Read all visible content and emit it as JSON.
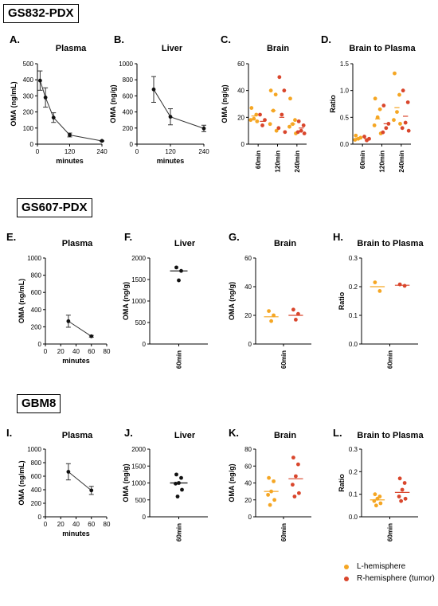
{
  "sections": [
    {
      "label": "GS832-PDX"
    },
    {
      "label": "GS607-PDX"
    },
    {
      "label": "GBM8"
    }
  ],
  "colors": {
    "L": "#F5A623",
    "R": "#D9462C",
    "black": "#111111"
  },
  "legend": {
    "items": [
      {
        "label": "L-hemisphere",
        "color": "#F5A623"
      },
      {
        "label": "R-hemisphere (tumor)",
        "color": "#D9462C"
      }
    ]
  },
  "chart_data": [
    {
      "id": "A",
      "panel_label": "A.",
      "title": "Plasma",
      "type": "line",
      "ylabel": "OMA (ng/mL)",
      "xlabel": "minutes",
      "xlim": [
        0,
        240
      ],
      "ylim": [
        0,
        500
      ],
      "xticks": [
        0,
        120,
        240
      ],
      "yticks": [
        0,
        100,
        200,
        300,
        400,
        500
      ],
      "points": [
        {
          "x": 10,
          "y": 395,
          "err": 60
        },
        {
          "x": 30,
          "y": 290,
          "err": 60
        },
        {
          "x": 60,
          "y": 165,
          "err": 30
        },
        {
          "x": 120,
          "y": 57,
          "err": 12
        },
        {
          "x": 240,
          "y": 20,
          "err": 3
        }
      ]
    },
    {
      "id": "B",
      "panel_label": "B.",
      "title": "Liver",
      "type": "line",
      "ylabel": "OMA (ng/g)",
      "xlabel": "minutes",
      "xlim": [
        0,
        240
      ],
      "ylim": [
        0,
        1000
      ],
      "xticks": [
        0,
        120,
        240
      ],
      "yticks": [
        0,
        200,
        400,
        600,
        800,
        1000
      ],
      "points": [
        {
          "x": 60,
          "y": 680,
          "err": 160
        },
        {
          "x": 120,
          "y": 340,
          "err": 100
        },
        {
          "x": 240,
          "y": 195,
          "err": 40
        }
      ]
    },
    {
      "id": "C",
      "panel_label": "C.",
      "title": "Brain",
      "type": "scatter",
      "ylabel": "OMA (ng/g)",
      "ylim": [
        0,
        60
      ],
      "yticks": [
        0,
        20,
        40,
        60
      ],
      "groups": [
        {
          "category": "60min",
          "L": {
            "values": [
              27,
              22,
              19,
              18,
              17
            ],
            "mean": 21
          },
          "R": {
            "values": [
              22,
              18,
              14
            ],
            "mean": 17
          }
        },
        {
          "category": "120min",
          "L": {
            "values": [
              40,
              37,
              25,
              15,
              10
            ],
            "mean": 25
          },
          "R": {
            "values": [
              50,
              40,
              22,
              12,
              9
            ],
            "mean": 20
          }
        },
        {
          "category": "240min",
          "L": {
            "values": [
              34,
              18,
              15,
              13,
              8
            ],
            "mean": 15
          },
          "R": {
            "values": [
              17,
              14,
              10,
              9,
              8
            ],
            "mean": 12
          }
        }
      ]
    },
    {
      "id": "D",
      "panel_label": "D.",
      "title": "Brain to Plasma",
      "type": "scatter",
      "ylabel": "Ratio",
      "ylim": [
        0,
        1.5
      ],
      "yticks": [
        0.0,
        0.5,
        1.0,
        1.5
      ],
      "groups": [
        {
          "category": "60min",
          "L": {
            "values": [
              0.16,
              0.12,
              0.1,
              0.08
            ],
            "mean": 0.11
          },
          "R": {
            "values": [
              0.14,
              0.1,
              0.07
            ],
            "mean": 0.1
          }
        },
        {
          "category": "120min",
          "L": {
            "values": [
              0.85,
              0.65,
              0.5,
              0.35,
              0.2
            ],
            "mean": 0.47
          },
          "R": {
            "values": [
              0.72,
              0.38,
              0.3,
              0.22
            ],
            "mean": 0.38
          }
        },
        {
          "category": "240min",
          "L": {
            "values": [
              1.32,
              0.92,
              0.6,
              0.45,
              0.38
            ],
            "mean": 0.68
          },
          "R": {
            "values": [
              1.0,
              0.78,
              0.4,
              0.3,
              0.25
            ],
            "mean": 0.52
          }
        }
      ]
    },
    {
      "id": "E",
      "panel_label": "E.",
      "title": "Plasma",
      "type": "line",
      "ylabel": "OMA (ng/mL)",
      "xlabel": "minutes",
      "xlim": [
        0,
        80
      ],
      "ylim": [
        0,
        1000
      ],
      "xticks": [
        0,
        20,
        40,
        60,
        80
      ],
      "yticks": [
        0,
        200,
        400,
        600,
        800,
        1000
      ],
      "points": [
        {
          "x": 30,
          "y": 265,
          "err": 70
        },
        {
          "x": 60,
          "y": 90,
          "err": 10
        }
      ]
    },
    {
      "id": "F",
      "panel_label": "F.",
      "title": "Liver",
      "type": "scatter",
      "ylabel": "OMA (ng/g)",
      "ylim": [
        0,
        2000
      ],
      "yticks": [
        0,
        500,
        1000,
        1500,
        2000
      ],
      "groups": [
        {
          "category": "60min",
          "K": {
            "values": [
              1780,
              1700,
              1480
            ],
            "mean": 1700
          }
        }
      ]
    },
    {
      "id": "G",
      "panel_label": "G.",
      "title": "Brain",
      "type": "scatter",
      "ylabel": "OMA (ng/g)",
      "ylim": [
        0,
        60
      ],
      "yticks": [
        0,
        20,
        40,
        60
      ],
      "groups": [
        {
          "category": "60min",
          "L": {
            "values": [
              23,
              20,
              16
            ],
            "mean": 19
          },
          "R": {
            "values": [
              24,
              21,
              17
            ],
            "mean": 20
          }
        }
      ]
    },
    {
      "id": "H",
      "panel_label": "H.",
      "title": "Brain to Plasma",
      "type": "scatter",
      "ylabel": "Ratio",
      "ylim": [
        0,
        0.3
      ],
      "yticks": [
        0.0,
        0.1,
        0.2,
        0.3
      ],
      "groups": [
        {
          "category": "60min",
          "L": {
            "values": [
              0.215,
              0.185
            ],
            "mean": 0.2
          },
          "R": {
            "values": [
              0.208,
              0.203
            ],
            "mean": 0.205
          }
        }
      ]
    },
    {
      "id": "I",
      "panel_label": "I.",
      "title": "Plasma",
      "type": "line",
      "ylabel": "OMA (ng/mL)",
      "xlabel": "minutes",
      "xlim": [
        0,
        80
      ],
      "ylim": [
        0,
        1000
      ],
      "xticks": [
        0,
        20,
        40,
        60,
        80
      ],
      "yticks": [
        0,
        200,
        400,
        600,
        800,
        1000
      ],
      "points": [
        {
          "x": 30,
          "y": 665,
          "err": 120
        },
        {
          "x": 60,
          "y": 390,
          "err": 60
        }
      ]
    },
    {
      "id": "J",
      "panel_label": "J.",
      "title": "Liver",
      "type": "scatter",
      "ylabel": "OMA (ng/g)",
      "ylim": [
        0,
        2000
      ],
      "yticks": [
        0,
        500,
        1000,
        1500,
        2000
      ],
      "groups": [
        {
          "category": "60min",
          "K": {
            "values": [
              1250,
              1150,
              1000,
              980,
              800,
              600
            ],
            "mean": 1000
          }
        }
      ]
    },
    {
      "id": "K",
      "panel_label": "K.",
      "title": "Brain",
      "type": "scatter",
      "ylabel": "OMA (ng/g)",
      "ylim": [
        0,
        80
      ],
      "yticks": [
        0,
        20,
        40,
        60,
        80
      ],
      "groups": [
        {
          "category": "60min",
          "L": {
            "values": [
              46,
              42,
              30,
              26,
              20,
              14
            ],
            "mean": 30
          },
          "R": {
            "values": [
              70,
              62,
              48,
              38,
              28,
              24
            ],
            "mean": 45
          }
        }
      ]
    },
    {
      "id": "L",
      "panel_label": "L.",
      "title": "Brain to Plasma",
      "type": "scatter",
      "ylabel": "Ratio",
      "ylim": [
        0,
        0.3
      ],
      "yticks": [
        0.0,
        0.1,
        0.2,
        0.3
      ],
      "groups": [
        {
          "category": "60min",
          "L": {
            "values": [
              0.1,
              0.09,
              0.08,
              0.07,
              0.06,
              0.05
            ],
            "mean": 0.075
          },
          "R": {
            "values": [
              0.17,
              0.15,
              0.12,
              0.09,
              0.08,
              0.07
            ],
            "mean": 0.108
          }
        }
      ]
    }
  ]
}
